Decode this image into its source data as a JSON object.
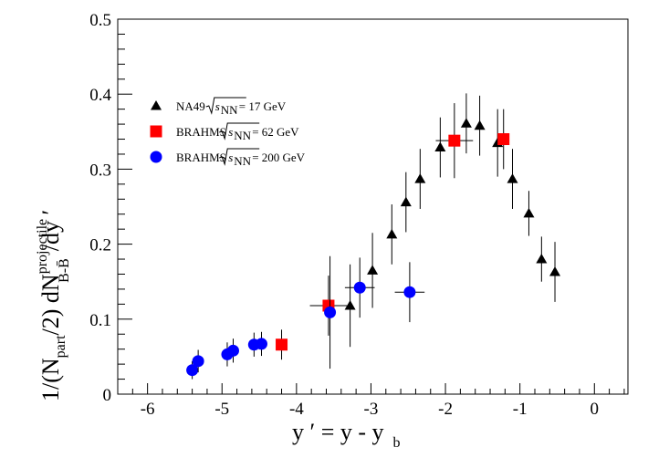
{
  "chart_data": {
    "type": "scatter",
    "xlim": [
      -6.4,
      0.45
    ],
    "ylim": [
      0,
      0.5
    ],
    "x_ticks": [
      -6,
      -5,
      -4,
      -3,
      -2,
      -1,
      0
    ],
    "x_tick_labels": [
      "-6",
      "-5",
      "-4",
      "-3",
      "-2",
      "-1",
      "0"
    ],
    "y_ticks": [
      0,
      0.1,
      0.2,
      0.3,
      0.4,
      0.5
    ],
    "y_tick_labels": [
      "0",
      "0.1",
      "0.2",
      "0.3",
      "0.4",
      "0.5"
    ],
    "xlabel": {
      "main": "y ′ = y - y",
      "sub": "b"
    },
    "ylabel": {
      "a": "1/(N",
      "a_sub": "part",
      "b": "/2) dN",
      "b_sup": "projectile",
      "b_sub": "B-B̄",
      "c": "/dy ′"
    },
    "legend_position": "top-left",
    "series": [
      {
        "name": "NA49 √s_NN = 17 GeV",
        "legend_prefix": "NA49",
        "legend_sub": "NN",
        "legend_suffix": "= 17 GeV",
        "marker": "triangle",
        "color": "#000000",
        "points": [
          {
            "x": -3.28,
            "y": 0.118,
            "yerr": 0.055,
            "xerr": 0
          },
          {
            "x": -2.98,
            "y": 0.165,
            "yerr": 0.05,
            "xerr": 0
          },
          {
            "x": -2.72,
            "y": 0.213,
            "yerr": 0.04,
            "xerr": 0
          },
          {
            "x": -2.53,
            "y": 0.256,
            "yerr": 0.04,
            "xerr": 0
          },
          {
            "x": -2.34,
            "y": 0.287,
            "yerr": 0.04,
            "xerr": 0
          },
          {
            "x": -2.07,
            "y": 0.329,
            "yerr": 0.04,
            "xerr": 0
          },
          {
            "x": -1.72,
            "y": 0.361,
            "yerr": 0.04,
            "xerr": 0
          },
          {
            "x": -1.54,
            "y": 0.358,
            "yerr": 0.04,
            "xerr": 0
          },
          {
            "x": -1.3,
            "y": 0.335,
            "yerr": 0.045,
            "xerr": 0
          },
          {
            "x": -1.1,
            "y": 0.287,
            "yerr": 0.04,
            "xerr": 0
          },
          {
            "x": -0.88,
            "y": 0.241,
            "yerr": 0.03,
            "xerr": 0
          },
          {
            "x": -0.71,
            "y": 0.18,
            "yerr": 0.03,
            "xerr": 0
          },
          {
            "x": -0.53,
            "y": 0.163,
            "yerr": 0.04,
            "xerr": 0
          }
        ]
      },
      {
        "name": "BRAHMS √s_NN = 62 GeV",
        "legend_prefix": "BRAHMS",
        "legend_sub": "NN",
        "legend_suffix": "= 62 GeV",
        "marker": "square",
        "color": "#ff0000",
        "points": [
          {
            "x": -4.2,
            "y": 0.066,
            "yerr": 0.02,
            "xerr": 0
          },
          {
            "x": -3.57,
            "y": 0.118,
            "yerr": 0.04,
            "xerr": 0.25
          },
          {
            "x": -1.88,
            "y": 0.338,
            "yerr": 0.05,
            "xerr": 0.25
          },
          {
            "x": -1.22,
            "y": 0.34,
            "yerr": 0.04,
            "xerr": 0
          }
        ]
      },
      {
        "name": "BRAHMS √s_NN = 200 GeV",
        "legend_prefix": "BRAHMS",
        "legend_sub": "NN",
        "legend_suffix": "= 200 GeV",
        "marker": "circle",
        "color": "#0000ff",
        "points": [
          {
            "x": -5.4,
            "y": 0.032,
            "yerr": 0.012,
            "xerr": 0
          },
          {
            "x": -5.32,
            "y": 0.044,
            "yerr": 0.015,
            "xerr": 0
          },
          {
            "x": -4.93,
            "y": 0.053,
            "yerr": 0.016,
            "xerr": 0
          },
          {
            "x": -4.85,
            "y": 0.058,
            "yerr": 0.016,
            "xerr": 0
          },
          {
            "x": -4.57,
            "y": 0.066,
            "yerr": 0.016,
            "xerr": 0
          },
          {
            "x": -4.47,
            "y": 0.067,
            "yerr": 0.016,
            "xerr": 0
          },
          {
            "x": -3.55,
            "y": 0.109,
            "yerr": 0.075,
            "xerr": 0.05
          },
          {
            "x": -3.15,
            "y": 0.142,
            "yerr": 0.04,
            "xerr": 0.2
          },
          {
            "x": -2.48,
            "y": 0.136,
            "yerr": 0.04,
            "xerr": 0.2
          }
        ]
      }
    ]
  }
}
